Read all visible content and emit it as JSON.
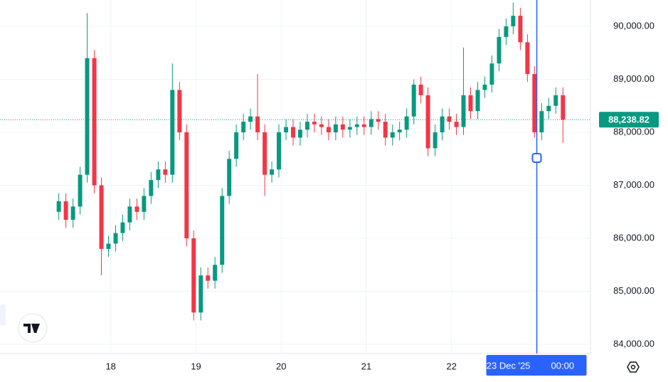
{
  "chart_data": {
    "type": "candlestick",
    "x": [
      17.39,
      17.473,
      17.557,
      17.64,
      17.723,
      17.807,
      17.89,
      17.973,
      18.057,
      18.14,
      18.223,
      18.307,
      18.39,
      18.473,
      18.557,
      18.64,
      18.723,
      18.807,
      18.89,
      18.973,
      19.057,
      19.14,
      19.223,
      19.307,
      19.39,
      19.473,
      19.557,
      19.64,
      19.723,
      19.807,
      19.89,
      19.973,
      20.057,
      20.14,
      20.223,
      20.307,
      20.39,
      20.473,
      20.557,
      20.64,
      20.723,
      20.807,
      20.89,
      20.973,
      21.057,
      21.14,
      21.223,
      21.307,
      21.39,
      21.473,
      21.557,
      21.64,
      21.723,
      21.807,
      21.89,
      21.973,
      22.057,
      22.14,
      22.223,
      22.307,
      22.39,
      22.473,
      22.557,
      22.64,
      22.723,
      22.807,
      22.89,
      22.973,
      23.057,
      23.14,
      23.223,
      23.307
    ],
    "open": [
      86500,
      86700,
      86350,
      86600,
      87200,
      89400,
      87000,
      85800,
      85900,
      86100,
      86300,
      86600,
      86500,
      86800,
      87100,
      87300,
      87200,
      88800,
      88000,
      86000,
      84600,
      85300,
      85200,
      85500,
      86800,
      87500,
      88000,
      88200,
      88300,
      88000,
      87200,
      87300,
      88000,
      88100,
      87900,
      88050,
      88200,
      88150,
      88100,
      88000,
      88150,
      88050,
      88100,
      88150,
      88100,
      88250,
      88200,
      87900,
      88000,
      88050,
      88300,
      88900,
      88700,
      87700,
      88000,
      88300,
      88200,
      88100,
      88700,
      88400,
      88800,
      88900,
      89300,
      89800,
      90000,
      90200,
      89700,
      89100,
      88000,
      88400,
      88500,
      88700
    ],
    "high": [
      86850,
      86850,
      86750,
      87350,
      90250,
      89550,
      87150,
      86050,
      86250,
      86450,
      86750,
      86750,
      86950,
      87250,
      87450,
      87450,
      89300,
      88950,
      88150,
      86150,
      85450,
      85450,
      85650,
      86950,
      87650,
      88150,
      88350,
      88450,
      89100,
      88150,
      87450,
      88150,
      88250,
      88250,
      88200,
      88350,
      88350,
      88300,
      88250,
      88300,
      88300,
      88250,
      88300,
      88300,
      88400,
      88400,
      88350,
      88150,
      88200,
      88450,
      89000,
      89050,
      88850,
      88150,
      88450,
      88450,
      88350,
      89600,
      88850,
      88950,
      89050,
      89450,
      89950,
      90150,
      90450,
      90350,
      89850,
      89250,
      88550,
      88650,
      88850,
      88850
    ],
    "low": [
      86350,
      86200,
      86200,
      86450,
      87050,
      86850,
      85300,
      85650,
      85750,
      85950,
      86150,
      86350,
      86350,
      86650,
      86950,
      87050,
      87050,
      87850,
      85850,
      84450,
      84450,
      85050,
      85050,
      85350,
      86650,
      87350,
      87850,
      88050,
      87850,
      86800,
      87050,
      87150,
      87850,
      87750,
      87750,
      87900,
      88000,
      87950,
      87850,
      87850,
      87900,
      87900,
      87950,
      87950,
      87950,
      88050,
      87750,
      87750,
      87850,
      87900,
      88150,
      88550,
      87550,
      87550,
      87850,
      88050,
      87950,
      87950,
      88250,
      88250,
      88650,
      88750,
      89150,
      89650,
      89850,
      89550,
      88950,
      87900,
      87850,
      88250,
      88350,
      87800
    ],
    "close": [
      86700,
      86350,
      86600,
      87200,
      89400,
      87000,
      85800,
      85900,
      86100,
      86300,
      86600,
      86500,
      86800,
      87100,
      87300,
      87200,
      88800,
      88000,
      86000,
      84600,
      85300,
      85200,
      85500,
      86800,
      87500,
      88000,
      88200,
      88300,
      88000,
      87200,
      87300,
      88000,
      88100,
      87900,
      88050,
      88200,
      88150,
      88100,
      88000,
      88150,
      88050,
      88100,
      88150,
      88100,
      88250,
      88200,
      87900,
      88000,
      88050,
      88300,
      88900,
      88700,
      87700,
      88000,
      88300,
      88200,
      88100,
      88700,
      88400,
      88800,
      88900,
      89300,
      89800,
      90000,
      90200,
      89700,
      89100,
      88000,
      88400,
      88500,
      88700,
      88238.82
    ],
    "up_color": "#089981",
    "down_color": "#f23645",
    "xlim": [
      16.7,
      23.63
    ],
    "xticks": [
      18,
      19,
      20,
      21,
      22
    ],
    "ylim": [
      83826,
      90497
    ],
    "yticks": [
      {
        "value": 84000,
        "label": "84,000.00"
      },
      {
        "value": 85000,
        "label": "85,000.00"
      },
      {
        "value": 86000,
        "label": "86,000.00"
      },
      {
        "value": 87000,
        "label": "87,000.00"
      },
      {
        "value": 88000,
        "label": "88,000.00"
      },
      {
        "value": 89000,
        "label": "89,000.00"
      },
      {
        "value": 90000,
        "label": "90,000.00"
      }
    ],
    "grid": true,
    "last_price": {
      "value": 88238.82,
      "label": "88,238.82"
    },
    "crosshair": {
      "x": 23,
      "date": "23 Dec '25",
      "time": "00:00",
      "color": "#2962ff"
    }
  }
}
